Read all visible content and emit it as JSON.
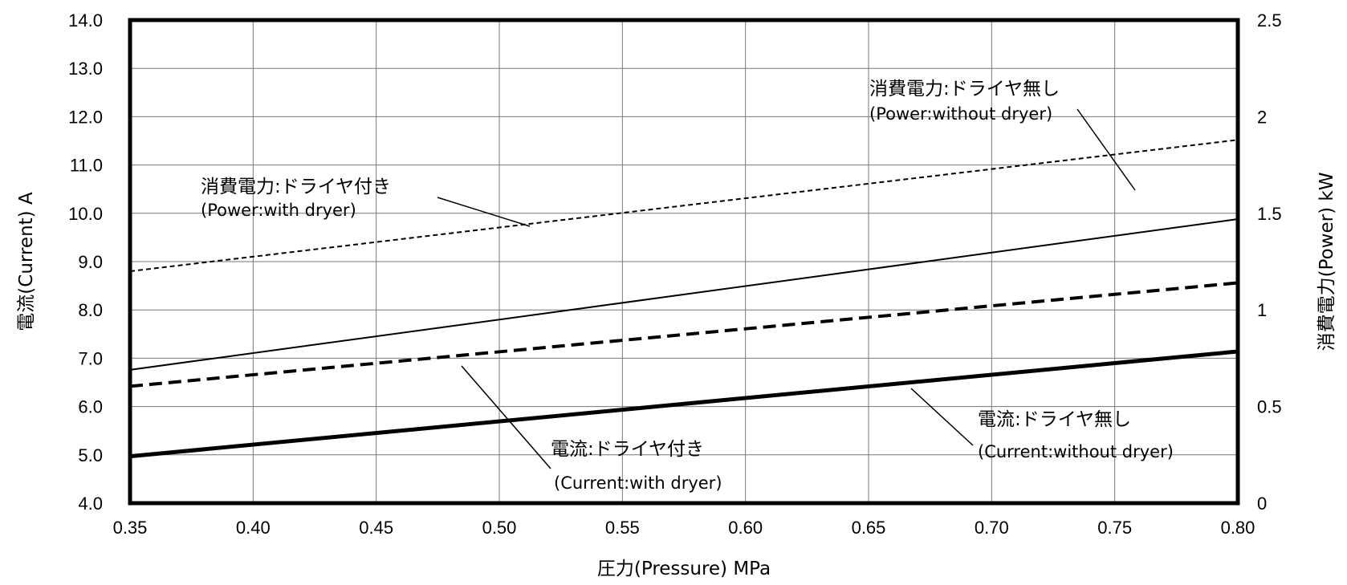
{
  "chart_data": {
    "type": "line",
    "x_axis": {
      "label": "圧力(Pressure)  MPa",
      "ticks": [
        "0.35",
        "0.40",
        "0.45",
        "0.50",
        "0.55",
        "0.60",
        "0.65",
        "0.70",
        "0.75",
        "0.80"
      ],
      "range": [
        0.35,
        0.8
      ]
    },
    "y_axis_left": {
      "label": "電流(Current)  A",
      "ticks": [
        "4.0",
        "5.0",
        "6.0",
        "7.0",
        "8.0",
        "9.0",
        "10.0",
        "11.0",
        "12.0",
        "13.0",
        "14.0"
      ],
      "range": [
        4.0,
        14.0
      ]
    },
    "y_axis_right": {
      "label": "消費電力(Power)  kW",
      "ticks": [
        "0",
        "0.5",
        "1",
        "1.5",
        "2",
        "2.5"
      ],
      "range": [
        0,
        2.5
      ]
    },
    "grid": true,
    "series": [
      {
        "name": "消費電力:ドライヤ付き",
        "name_en": "(Power:with dryer)",
        "axis": "right",
        "style": "dashed-thin",
        "x": [
          0.35,
          0.8
        ],
        "y": [
          1.2,
          1.88
        ]
      },
      {
        "name": "消費電力:ドライヤ無し",
        "name_en": "(Power:without dryer)",
        "axis": "right",
        "style": "solid-thin",
        "x": [
          0.35,
          0.8
        ],
        "y": [
          0.69,
          1.47
        ]
      },
      {
        "name": "電流:ドライヤ付き",
        "name_en": "(Current:with dryer)",
        "axis": "left",
        "style": "dashed-thick",
        "x": [
          0.35,
          0.8
        ],
        "y": [
          6.42,
          8.56
        ]
      },
      {
        "name": "電流:ドライヤ無し",
        "name_en": "(Current:without dryer)",
        "axis": "left",
        "style": "solid-thick",
        "x": [
          0.35,
          0.8
        ],
        "y": [
          4.97,
          7.14
        ]
      }
    ]
  }
}
